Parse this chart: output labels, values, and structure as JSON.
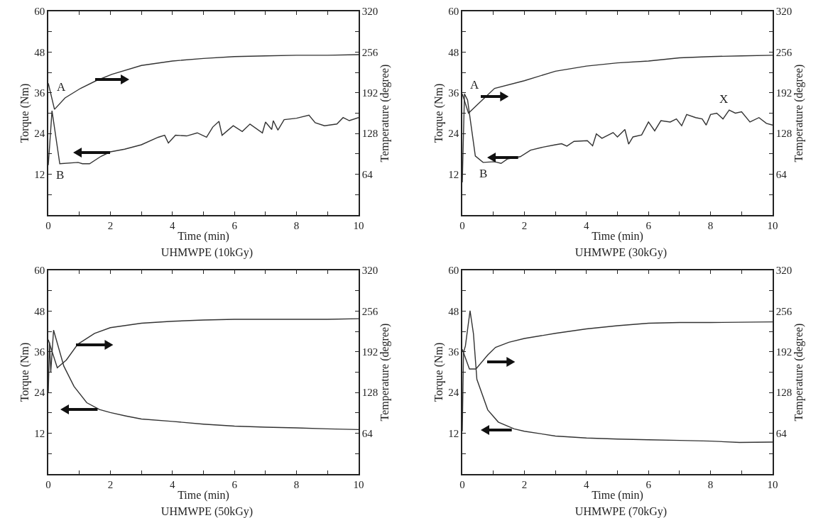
{
  "chart_data": [
    {
      "type": "line",
      "title": "UHMWPE (10kGy)",
      "xlabel": "Time (min)",
      "ylabel": "Torque (Nm)",
      "y2label": "Temperature (degree)",
      "xlim": [
        0,
        10
      ],
      "xticks": [
        0,
        {
          "value": 1,
          "label": null
        },
        2,
        {
          "value": 3,
          "label": null
        },
        4,
        {
          "value": 5,
          "label": null
        },
        6,
        {
          "value": 7,
          "label": null
        },
        8,
        {
          "value": 9,
          "label": null
        },
        10
      ],
      "ylim": [
        0,
        60
      ],
      "yticks": [
        {
          "value": 0,
          "label": null
        },
        {
          "value": 6,
          "label": null
        },
        12,
        {
          "value": 18,
          "label": null
        },
        24,
        {
          "value": 30,
          "label": null
        },
        36,
        {
          "value": 42,
          "label": null
        },
        48,
        {
          "value": 54,
          "label": null
        },
        60
      ],
      "y2lim": [
        0,
        320
      ],
      "y2ticks": [
        {
          "value": 0,
          "label": null
        },
        {
          "value": 32,
          "label": null
        },
        64,
        {
          "value": 96,
          "label": null
        },
        128,
        {
          "value": 160,
          "label": null
        },
        192,
        {
          "value": 224,
          "label": null
        },
        256,
        {
          "value": 288,
          "label": null
        },
        320
      ],
      "grid": false,
      "annotations": [
        "A",
        {
          "text": "B",
          "x": 0.37,
          "y": 15.1
        }
      ],
      "series": [
        {
          "color": "#333333",
          "x": [
            0,
            0.12,
            0.37,
            0.96,
            1.1,
            1.33,
            1.7,
            2,
            2.46,
            3,
            3.54,
            3.75,
            3.87,
            4.1,
            4.46,
            4.8,
            5.1,
            5.3,
            5.5,
            5.6,
            5.96,
            6.25,
            6.5,
            6.9,
            7,
            7.2,
            7.25,
            7.4,
            7.6,
            8,
            8.4,
            8.6,
            8.9,
            9.3,
            9.5,
            9.7,
            10
          ],
          "values": [
            14.7,
            30.7,
            15.1,
            15.5,
            15.1,
            15.1,
            17.3,
            18.6,
            19.4,
            20.7,
            22.9,
            23.5,
            21.2,
            23.5,
            23.3,
            24.2,
            22.9,
            25.9,
            27.6,
            23.5,
            26.3,
            24.6,
            26.8,
            24.2,
            27.4,
            25.2,
            27.8,
            25,
            28.1,
            28.5,
            29.4,
            27.2,
            26.3,
            26.8,
            28.7,
            27.8,
            28.7
          ]
        },
        {
          "color": "#333333",
          "axis": "y2",
          "x": [
            0,
            0.2,
            0.54,
            1.04,
            1.54,
            2.04,
            3,
            4,
            5,
            6,
            7,
            8,
            9,
            10
          ],
          "values": [
            207,
            166,
            184,
            199,
            211,
            221,
            235,
            242,
            246,
            249,
            250,
            251,
            251,
            252
          ]
        }
      ]
    },
    {
      "type": "line",
      "title": "UHMWPE (30kGy)",
      "xlabel": "Time (min)",
      "ylabel": "Torque (Nm)",
      "y2label": "Temperature (degree)",
      "xlim": [
        0,
        10
      ],
      "xticks": [
        0,
        {
          "value": 1,
          "label": null
        },
        2,
        {
          "value": 3,
          "label": null
        },
        4,
        {
          "value": 5,
          "label": null
        },
        6,
        {
          "value": 7,
          "label": null
        },
        8,
        {
          "value": 9,
          "label": null
        },
        10
      ],
      "ylim": [
        0,
        60
      ],
      "yticks": [
        {
          "value": 0,
          "label": null
        },
        {
          "value": 6,
          "label": null
        },
        12,
        {
          "value": 18,
          "label": null
        },
        24,
        {
          "value": 30,
          "label": null
        },
        36,
        {
          "value": 42,
          "label": null
        },
        48,
        {
          "value": 54,
          "label": null
        },
        60
      ],
      "y2lim": [
        0,
        320
      ],
      "y2ticks": [
        {
          "value": 0,
          "label": null
        },
        {
          "value": 32,
          "label": null
        },
        64,
        {
          "value": 96,
          "label": null
        },
        128,
        {
          "value": 160,
          "label": null
        },
        192,
        {
          "value": 224,
          "label": null
        },
        256,
        {
          "value": 288,
          "label": null
        },
        320
      ],
      "grid": false,
      "annotations": [
        "A",
        {
          "text": "B",
          "x": 0.67,
          "y": 15.5
        },
        "X"
      ],
      "series": [
        {
          "color": "#333333",
          "x": [
            0,
            0.07,
            0.17,
            0.42,
            0.67,
            1.04,
            1.25,
            1.45,
            1.87,
            2.2,
            2.6,
            3,
            3.2,
            3.37,
            3.6,
            4.03,
            4.2,
            4.32,
            4.5,
            4.86,
            5,
            5.24,
            5.36,
            5.5,
            5.78,
            6,
            6.2,
            6.4,
            6.7,
            6.9,
            7.07,
            7.23,
            7.52,
            7.73,
            7.86,
            8,
            8.2,
            8.4,
            8.6,
            8.8,
            9,
            9.27,
            9.56,
            9.8,
            10
          ],
          "values": [
            9.6,
            35.7,
            33.9,
            17.4,
            15.5,
            15.7,
            15.2,
            16.5,
            17.2,
            19.1,
            20,
            20.7,
            21,
            20.3,
            21.7,
            21.9,
            20.4,
            23.9,
            22.6,
            24.3,
            23,
            25.2,
            20.9,
            23,
            23.6,
            27.4,
            24.8,
            27.8,
            27.4,
            28.3,
            26.3,
            29.6,
            28.7,
            28.3,
            26.5,
            29.6,
            30,
            28.3,
            30.9,
            30,
            30.4,
            27.4,
            28.7,
            27,
            26.5
          ]
        },
        {
          "color": "#333333",
          "axis": "y2",
          "x": [
            0,
            0.2,
            0.54,
            1.04,
            2,
            3,
            4,
            5,
            6,
            7,
            8,
            9,
            10
          ],
          "values": [
            190,
            160,
            176,
            199,
            211,
            226,
            234,
            239,
            242,
            247,
            249,
            250,
            251
          ]
        }
      ]
    },
    {
      "type": "line",
      "title": "UHMWPE (50kGy)",
      "xlabel": "Time (min)",
      "ylabel": "Torque (Nm)",
      "y2label": "Temperature (degree)",
      "xlim": [
        0,
        10
      ],
      "xticks": [
        0,
        {
          "value": 1,
          "label": null
        },
        2,
        {
          "value": 3,
          "label": null
        },
        4,
        {
          "value": 5,
          "label": null
        },
        6,
        {
          "value": 7,
          "label": null
        },
        8,
        {
          "value": 9,
          "label": null
        },
        10
      ],
      "ylim": [
        0,
        60
      ],
      "yticks": [
        {
          "value": 0,
          "label": null
        },
        {
          "value": 6,
          "label": null
        },
        12,
        {
          "value": 18,
          "label": null
        },
        24,
        {
          "value": 30,
          "label": null
        },
        36,
        {
          "value": 42,
          "label": null
        },
        48,
        {
          "value": 54,
          "label": null
        },
        60
      ],
      "y2lim": [
        0,
        320
      ],
      "y2ticks": [
        {
          "value": 0,
          "label": null
        },
        {
          "value": 32,
          "label": null
        },
        64,
        {
          "value": 96,
          "label": null
        },
        128,
        {
          "value": 160,
          "label": null
        },
        192,
        {
          "value": 224,
          "label": null
        },
        256,
        {
          "value": 288,
          "label": null
        },
        320
      ],
      "grid": false,
      "series": [
        {
          "color": "#333333",
          "x": [
            0,
            0.04,
            0.08,
            0.17,
            0.5,
            0.83,
            1.24,
            1.65,
            2,
            2.5,
            3,
            4,
            5,
            6,
            7,
            8,
            9,
            10
          ],
          "values": [
            24,
            38.8,
            30.1,
            42.4,
            31.8,
            25.8,
            21,
            19,
            18.1,
            17.1,
            16.2,
            15.5,
            14.7,
            14.1,
            13.8,
            13.6,
            13.3,
            13.1
          ]
        },
        {
          "color": "#333333",
          "axis": "y2",
          "x": [
            0,
            0.29,
            0.58,
            0.95,
            1.49,
            2,
            3,
            4,
            5,
            6,
            7,
            8,
            9,
            10
          ],
          "values": [
            211,
            167,
            179,
            204,
            221,
            230,
            237,
            240,
            242,
            243,
            243,
            243,
            243,
            244
          ]
        }
      ]
    },
    {
      "type": "line",
      "title": "UHMWPE (70kGy)",
      "xlabel": "Time (min)",
      "ylabel": "Torque (Nm)",
      "y2label": "Temperature (degree)",
      "xlim": [
        0,
        10
      ],
      "xticks": [
        0,
        {
          "value": 1,
          "label": null
        },
        2,
        {
          "value": 3,
          "label": null
        },
        4,
        {
          "value": 5,
          "label": null
        },
        6,
        {
          "value": 7,
          "label": null
        },
        8,
        {
          "value": 9,
          "label": null
        },
        10
      ],
      "ylim": [
        0,
        60
      ],
      "yticks": [
        {
          "value": 0,
          "label": null
        },
        {
          "value": 6,
          "label": null
        },
        12,
        {
          "value": 18,
          "label": null
        },
        24,
        {
          "value": 30,
          "label": null
        },
        36,
        {
          "value": 42,
          "label": null
        },
        48,
        {
          "value": 54,
          "label": null
        },
        60
      ],
      "y2lim": [
        0,
        320
      ],
      "y2ticks": [
        {
          "value": 0,
          "label": null
        },
        {
          "value": 32,
          "label": null
        },
        64,
        {
          "value": 96,
          "label": null
        },
        128,
        {
          "value": 160,
          "label": null
        },
        192,
        {
          "value": 224,
          "label": null
        },
        256,
        {
          "value": 288,
          "label": null
        },
        320
      ],
      "grid": false,
      "series": [
        {
          "color": "#333333",
          "x": [
            0,
            0.04,
            0.1,
            0.25,
            0.36,
            0.47,
            0.82,
            1.16,
            1.67,
            2,
            3,
            4,
            5,
            6,
            7,
            8,
            8.93,
            10
          ],
          "values": [
            12.6,
            35.9,
            37.7,
            48.1,
            41.3,
            27.9,
            18.9,
            15.3,
            13.3,
            12.6,
            11.2,
            10.6,
            10.3,
            10.1,
            9.9,
            9.7,
            9.3,
            9.4
          ]
        },
        {
          "color": "#333333",
          "axis": "y2",
          "x": [
            0,
            0.23,
            0.44,
            0.82,
            1.07,
            1.5,
            2,
            3,
            4,
            5,
            6,
            7,
            8,
            10
          ],
          "values": [
            196,
            165,
            165,
            187,
            199,
            207,
            213,
            221,
            228,
            233,
            237,
            238,
            238,
            239
          ]
        }
      ]
    }
  ]
}
